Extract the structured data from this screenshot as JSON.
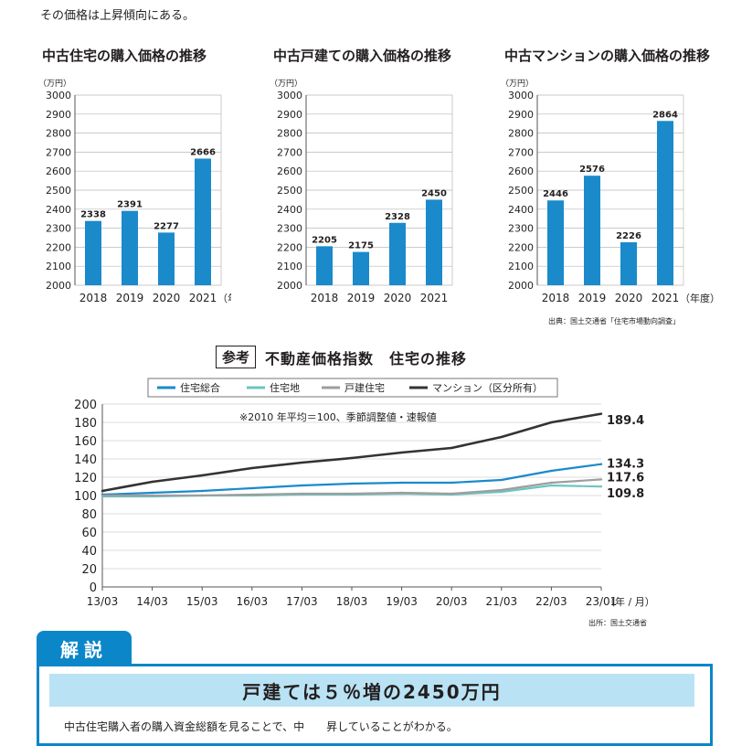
{
  "intro_text": "その価格は上昇傾向にある。",
  "chart_data": [
    {
      "type": "bar",
      "title": "中古住宅の購入価格の推移",
      "unit_label": "（万円）",
      "categories": [
        "2018",
        "2019",
        "2020",
        "2021"
      ],
      "values": [
        2338,
        2391,
        2277,
        2666
      ],
      "ylim": [
        2000,
        3000
      ],
      "yticks": [
        2000,
        2100,
        2200,
        2300,
        2400,
        2500,
        2600,
        2700,
        2800,
        2900,
        3000
      ],
      "xunit": "（年度）",
      "bar_color": "#1a8acb",
      "grid": true
    },
    {
      "type": "bar",
      "title": "中古戸建ての購入価格の推移",
      "unit_label": "（万円）",
      "categories": [
        "2018",
        "2019",
        "2020",
        "2021"
      ],
      "values": [
        2205,
        2175,
        2328,
        2450
      ],
      "ylim": [
        2000,
        3000
      ],
      "yticks": [
        2000,
        2100,
        2200,
        2300,
        2400,
        2500,
        2600,
        2700,
        2800,
        2900,
        3000
      ],
      "xunit": "",
      "bar_color": "#1a8acb",
      "grid": true
    },
    {
      "type": "bar",
      "title": "中古マンションの購入価格の推移",
      "unit_label": "（万円）",
      "categories": [
        "2018",
        "2019",
        "2020",
        "2021"
      ],
      "values": [
        2446,
        2576,
        2226,
        2864
      ],
      "ylim": [
        2000,
        3000
      ],
      "yticks": [
        2000,
        2100,
        2200,
        2300,
        2400,
        2500,
        2600,
        2700,
        2800,
        2900,
        3000
      ],
      "xunit": "（年度）",
      "bar_color": "#1a8acb",
      "grid": true
    },
    {
      "type": "line",
      "title": "不動産価格指数　住宅の推移",
      "badge": "参考",
      "note": "※2010 年平均＝100、季節調整値・速報値",
      "x": [
        "13/03",
        "14/03",
        "15/03",
        "16/03",
        "17/03",
        "18/03",
        "19/03",
        "20/03",
        "21/03",
        "22/03",
        "23/01"
      ],
      "xunit": "（年 / 月）",
      "ylim": [
        0,
        200
      ],
      "yticks": [
        0,
        20,
        40,
        60,
        80,
        100,
        120,
        140,
        160,
        180,
        200
      ],
      "legend_position": "top",
      "grid": true,
      "series": [
        {
          "name": "住宅総合",
          "color": "#1a8acb",
          "end_label": "134.3",
          "values": [
            101,
            103,
            105,
            108,
            111,
            113,
            114,
            114,
            117,
            127,
            134.3
          ]
        },
        {
          "name": "住宅地",
          "color": "#6cc5c1",
          "end_label": "109.8",
          "values": [
            99,
            99,
            100,
            100,
            101,
            101,
            102,
            101,
            104,
            111,
            109.8
          ]
        },
        {
          "name": "戸建住宅",
          "color": "#9e9e9e",
          "end_label": "117.6",
          "values": [
            100,
            100,
            100,
            101,
            102,
            102,
            103,
            102,
            106,
            114,
            117.6
          ]
        },
        {
          "name": "マンション（区分所有）",
          "color": "#333333",
          "end_label": "189.4",
          "values": [
            105,
            115,
            122,
            130,
            136,
            141,
            147,
            152,
            164,
            180,
            189.4
          ]
        }
      ]
    }
  ],
  "source_1": "出典：国土交通省「住宅市場動向調査」",
  "source_2": "出所：国土交通省",
  "kaisetsu_label": "解説",
  "headline": "戸建ては５％増の2450万円",
  "body_text": "中古住宅購入者の購入資金総額を見ることで、中　　昇していることがわかる。"
}
